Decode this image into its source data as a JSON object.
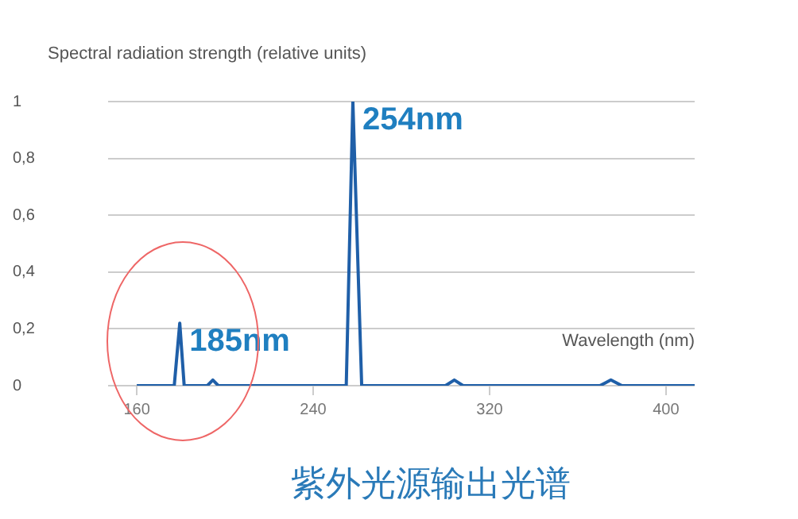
{
  "chart_data": {
    "type": "line",
    "ylabel": "Spectral radiation strength (relative units)",
    "xlabel": "Wavelength (nm)",
    "annotations": [
      {
        "text": "254nm",
        "x": 258,
        "y": 1
      },
      {
        "text": "185nm",
        "x": 179.5,
        "y": 0.22
      },
      "紫外光源输出光谱"
    ],
    "series": [
      {
        "color": "#1f5fa8",
        "x": [
          160,
          177,
          179.5,
          181.5,
          192,
          194.5,
          197,
          255,
          258,
          262,
          300,
          304,
          308,
          370,
          375,
          380,
          413
        ],
        "values": [
          0,
          0,
          0.22,
          0,
          0,
          0.02,
          0,
          0,
          1,
          0,
          0,
          0.02,
          0,
          0,
          0.02,
          0,
          0
        ]
      }
    ],
    "xlim": [
      147,
      413
    ],
    "xticks": [
      160,
      240,
      320,
      400
    ],
    "ylim": [
      0,
      1
    ],
    "yticks": [
      0,
      {
        "value": 0.2,
        "label": "0,2"
      },
      {
        "value": 0.4,
        "label": "0,4"
      },
      {
        "value": 0.6,
        "label": "0,6"
      },
      {
        "value": 0.8,
        "label": "0,8"
      },
      1
    ],
    "grid": "y",
    "legend": false,
    "marker": "none",
    "line_style": "solid"
  }
}
